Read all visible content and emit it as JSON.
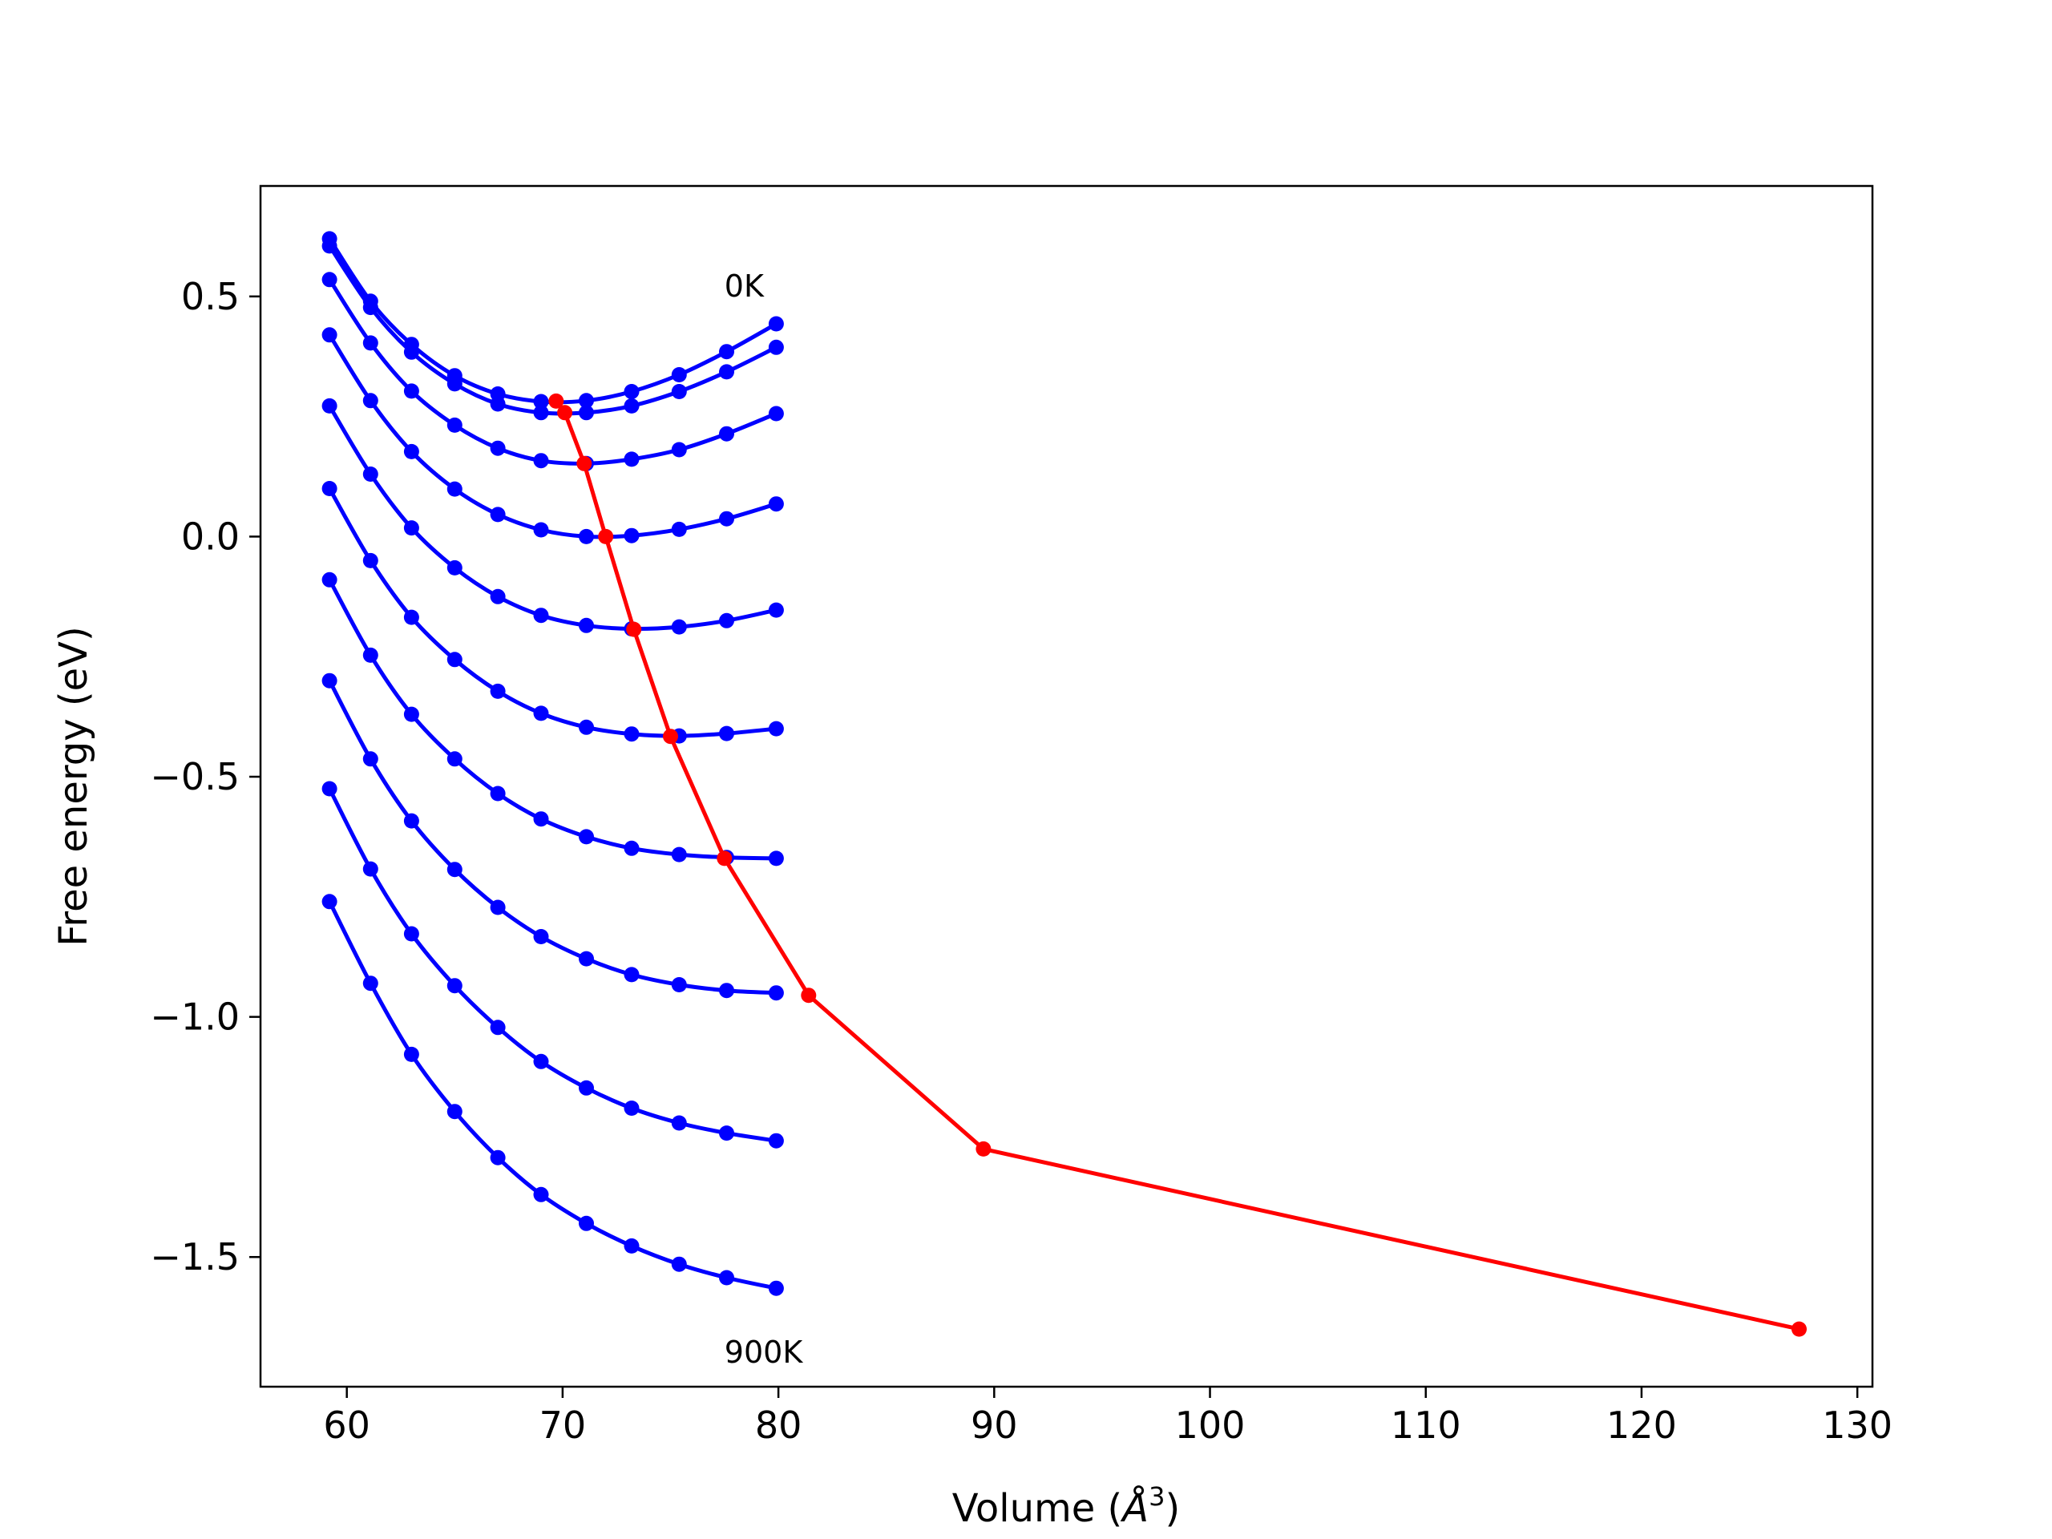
{
  "chart_data": {
    "type": "line",
    "title": "",
    "xlabel": "Volume (",
    "xlabel_unit": "Å",
    "xlabel_exp": "3",
    "xlabel_close": ")",
    "ylabel": "Free energy (eV)",
    "xlim": [
      56,
      130.7
    ],
    "ylim": [
      -1.77,
      0.73
    ],
    "xticks": [
      60,
      70,
      80,
      90,
      100,
      110,
      120,
      130
    ],
    "xtick_labels": [
      "60",
      "70",
      "80",
      "90",
      "100",
      "110",
      "120",
      "130"
    ],
    "yticks": [
      0.5,
      0.0,
      -0.5,
      -1.0,
      -1.5
    ],
    "ytick_labels": [
      "0.5",
      "0.0",
      "−0.5",
      "−1.0",
      "−1.5"
    ],
    "grid": false,
    "colors": {
      "isotherms": "#0000ff",
      "minima": "#ff0000"
    },
    "x": [
      59.2,
      61.1,
      63.0,
      65.0,
      67.0,
      69.0,
      71.1,
      73.2,
      75.4,
      77.6,
      79.9
    ],
    "series": [
      {
        "values": [
          0.62,
          0.49,
          0.4,
          0.335,
          0.297,
          0.281,
          0.283,
          0.302,
          0.337,
          0.385,
          0.443
        ]
      },
      {
        "values": [
          0.605,
          0.477,
          0.384,
          0.318,
          0.276,
          0.258,
          0.258,
          0.272,
          0.302,
          0.343,
          0.394
        ]
      },
      {
        "values": [
          0.535,
          0.403,
          0.303,
          0.232,
          0.184,
          0.158,
          0.152,
          0.161,
          0.181,
          0.214,
          0.256
        ]
      },
      {
        "values": [
          0.42,
          0.283,
          0.177,
          0.099,
          0.046,
          0.014,
          0.0,
          0.002,
          0.015,
          0.037,
          0.068
        ]
      },
      {
        "values": [
          0.272,
          0.13,
          0.018,
          -0.065,
          -0.125,
          -0.164,
          -0.185,
          -0.192,
          -0.188,
          -0.175,
          -0.153
        ]
      },
      {
        "values": [
          0.1,
          -0.05,
          -0.168,
          -0.256,
          -0.322,
          -0.368,
          -0.397,
          -0.411,
          -0.415,
          -0.41,
          -0.4
        ]
      },
      {
        "values": [
          -0.09,
          -0.247,
          -0.37,
          -0.463,
          -0.535,
          -0.588,
          -0.625,
          -0.649,
          -0.662,
          -0.668,
          -0.67
        ]
      },
      {
        "values": [
          -0.3,
          -0.463,
          -0.592,
          -0.693,
          -0.772,
          -0.833,
          -0.879,
          -0.912,
          -0.933,
          -0.945,
          -0.95
        ]
      },
      {
        "values": [
          -0.525,
          -0.692,
          -0.827,
          -0.935,
          -1.022,
          -1.093,
          -1.148,
          -1.19,
          -1.221,
          -1.242,
          -1.258
        ]
      },
      {
        "values": [
          -0.76,
          -0.93,
          -1.078,
          -1.197,
          -1.293,
          -1.37,
          -1.43,
          -1.477,
          -1.515,
          -1.543,
          -1.565
        ]
      }
    ],
    "minima": {
      "x": [
        69.7,
        70.1,
        71.0,
        72.0,
        73.3,
        75.0,
        77.5,
        81.4,
        89.5,
        127.3
      ],
      "y": [
        0.282,
        0.258,
        0.152,
        0.0,
        -0.193,
        -0.416,
        -0.67,
        -0.955,
        -1.275,
        -1.65
      ]
    },
    "annotations": [
      {
        "text": "0K",
        "x": 77.5,
        "y": 0.5
      },
      {
        "text": "900K",
        "x": 77.5,
        "y": -1.72
      }
    ]
  }
}
